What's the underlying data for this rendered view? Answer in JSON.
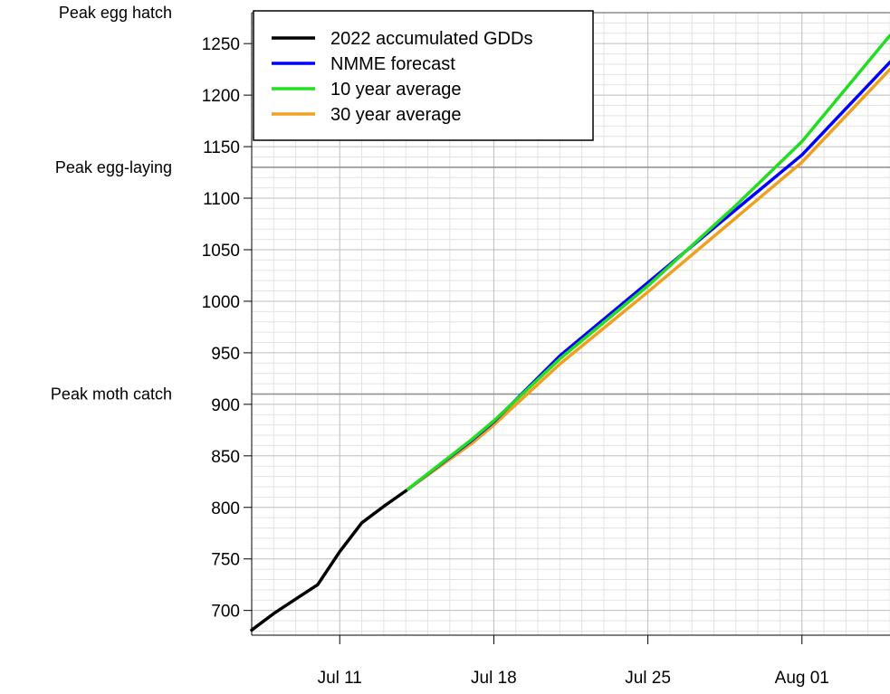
{
  "chart_data": {
    "type": "line",
    "title": "",
    "xlabel": "",
    "ylabel": "",
    "x_tick_labels": [
      "Jul 11",
      "Jul 18",
      "Jul 25",
      "Aug 01"
    ],
    "x_ticks": [
      "2022-07-11",
      "2022-07-18",
      "2022-07-25",
      "2022-08-01"
    ],
    "xlim": [
      "2022-07-07",
      "2022-08-05"
    ],
    "ylim": [
      676,
      1280
    ],
    "y_ticks": [
      700,
      750,
      800,
      850,
      900,
      950,
      1000,
      1050,
      1100,
      1150,
      1200,
      1250
    ],
    "grid": true,
    "legend_position": "top-left",
    "reference_lines": [
      {
        "label": "Peak moth catch",
        "y": 910
      },
      {
        "label": "Peak egg-laying",
        "y": 1130
      },
      {
        "label": "Peak egg hatch",
        "y": 1280
      }
    ],
    "series": [
      {
        "name": "2022 accumulated GDDs",
        "color": "#000000",
        "x": [
          "2022-07-07",
          "2022-07-08",
          "2022-07-09",
          "2022-07-10",
          "2022-07-11",
          "2022-07-12",
          "2022-07-13",
          "2022-07-14"
        ],
        "y": [
          681,
          697,
          711,
          725,
          757,
          785,
          801,
          816
        ]
      },
      {
        "name": "NMME forecast",
        "color": "#0000ff",
        "x": [
          "2022-07-14",
          "2022-07-17",
          "2022-07-18",
          "2022-07-21",
          "2022-07-25",
          "2022-07-29",
          "2022-08-01",
          "2022-08-05"
        ],
        "y": [
          816,
          865,
          883,
          947,
          1018,
          1089,
          1142,
          1232
        ]
      },
      {
        "name": "10 year average",
        "color": "#22dd22",
        "x": [
          "2022-07-14",
          "2022-07-17",
          "2022-07-18",
          "2022-07-21",
          "2022-07-25",
          "2022-07-29",
          "2022-08-01",
          "2022-08-05"
        ],
        "y": [
          816,
          866,
          884,
          944,
          1015,
          1093,
          1155,
          1258
        ]
      },
      {
        "name": "30 year average",
        "color": "#f0a020",
        "x": [
          "2022-07-14",
          "2022-07-17",
          "2022-07-18",
          "2022-07-21",
          "2022-07-25",
          "2022-07-29",
          "2022-08-01",
          "2022-08-05"
        ],
        "y": [
          816,
          862,
          880,
          939,
          1009,
          1081,
          1135,
          1225
        ]
      }
    ]
  }
}
